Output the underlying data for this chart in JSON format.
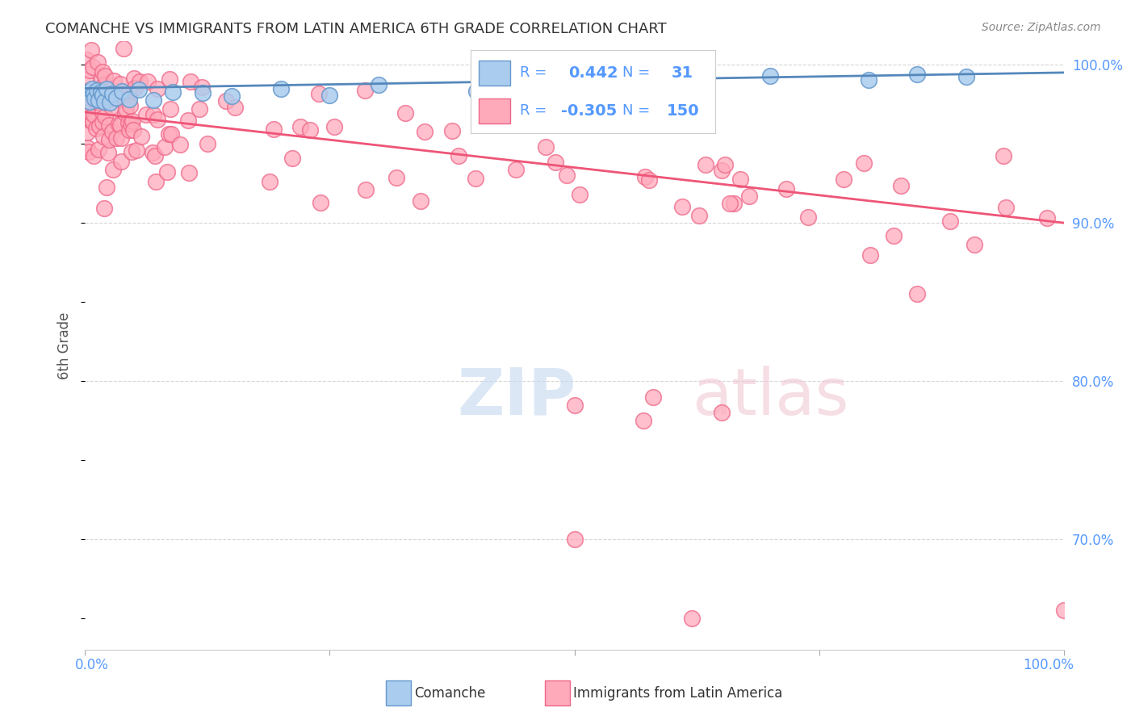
{
  "title": "COMANCHE VS IMMIGRANTS FROM LATIN AMERICA 6TH GRADE CORRELATION CHART",
  "source": "Source: ZipAtlas.com",
  "ylabel": "6th Grade",
  "blue_R": 0.442,
  "blue_N": 31,
  "pink_R": -0.305,
  "pink_N": 150,
  "blue_color": "#aaccee",
  "pink_color": "#ffaabb",
  "blue_edge_color": "#6699cc",
  "pink_edge_color": "#ee6688",
  "blue_line_color": "#5588bb",
  "pink_line_color": "#ee5577",
  "background_color": "#ffffff",
  "grid_color": "#cccccc",
  "right_tick_color": "#5599ff",
  "ylim_min": 63.0,
  "ylim_max": 101.5,
  "xlim_min": 0.0,
  "xlim_max": 100.0,
  "yticks": [
    70,
    80,
    90,
    100
  ],
  "watermark_zip_color": "#c5d8f0",
  "watermark_atlas_color": "#f0c8d5"
}
